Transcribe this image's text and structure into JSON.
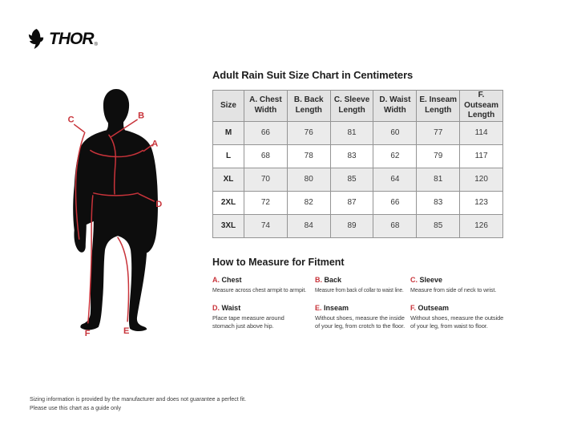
{
  "brand": {
    "name": "THOR",
    "registered": "®"
  },
  "figure": {
    "labels": [
      "A",
      "B",
      "C",
      "D",
      "E",
      "F"
    ]
  },
  "size_chart": {
    "title": "Adult Rain Suit Size Chart in Centimeters",
    "columns": [
      "Size",
      "A. Chest Width",
      "B. Back Length",
      "C. Sleeve Length",
      "D. Waist Width",
      "E. Inseam Length",
      "F. Outseam Length"
    ],
    "rows": [
      {
        "size": "M",
        "values": [
          "66",
          "76",
          "81",
          "60",
          "77",
          "114"
        ]
      },
      {
        "size": "L",
        "values": [
          "68",
          "78",
          "83",
          "62",
          "79",
          "117"
        ]
      },
      {
        "size": "XL",
        "values": [
          "70",
          "80",
          "85",
          "64",
          "81",
          "120"
        ]
      },
      {
        "size": "2XL",
        "values": [
          "72",
          "82",
          "87",
          "66",
          "83",
          "123"
        ]
      },
      {
        "size": "3XL",
        "values": [
          "74",
          "84",
          "89",
          "68",
          "85",
          "126"
        ]
      }
    ]
  },
  "how_to_measure": {
    "title": "How to Measure for Fitment",
    "items": [
      {
        "letter": "A.",
        "name": "Chest",
        "description": "Measure across chest armpit to armpit."
      },
      {
        "letter": "B.",
        "name": "Back",
        "description": "Measure from back of collar to waist line."
      },
      {
        "letter": "C.",
        "name": "Sleeve",
        "description": "Measure from side of neck to wrist."
      },
      {
        "letter": "D.",
        "name": "Waist",
        "description": "Place tape measure around stomach just above hip."
      },
      {
        "letter": "E.",
        "name": "Inseam",
        "description": "Without shoes, measure the inside of your leg, from crotch to the floor."
      },
      {
        "letter": "F.",
        "name": "Outseam",
        "description": "Without shoes, measure the outside of your leg, from waist to floor."
      }
    ]
  },
  "footer": {
    "line1": "Sizing information is provided by the manufacturer and does not guarantee a perfect fit.",
    "line2": "Please use this chart as a guide only"
  },
  "colors": {
    "accent_red": "#c8333a",
    "silhouette_black": "#0d0d0d",
    "table_border": "#949494",
    "row_stripe": "#ebebeb",
    "header_bg": "#e3e3e3"
  }
}
